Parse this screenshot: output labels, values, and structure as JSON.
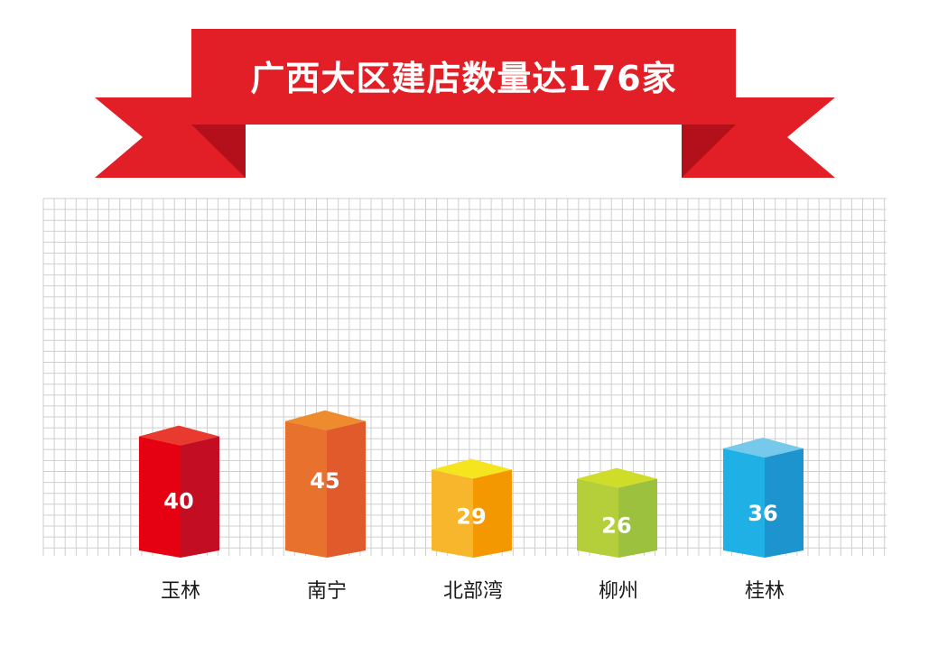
{
  "chart_data": {
    "type": "bar",
    "title": "广西大区建店数量达176家",
    "categories": [
      "玉林",
      "南宁",
      "北部湾",
      "柳州",
      "桂林"
    ],
    "values": [
      40,
      45,
      29,
      26,
      36
    ],
    "colors": [
      {
        "front": "#e50012",
        "side": "#c30d23",
        "top": "#e83a2e"
      },
      {
        "front": "#e8712d",
        "side": "#e05a2b",
        "top": "#ee8b2c"
      },
      {
        "front": "#f8b62d",
        "side": "#f39800",
        "top": "#f5e51e"
      },
      {
        "front": "#b5cf3a",
        "side": "#9cc13e",
        "top": "#cfdc2a"
      },
      {
        "front": "#1fb1e6",
        "side": "#1e94cf",
        "top": "#76c9ea"
      }
    ],
    "grid": true,
    "background": "#ffffff",
    "banner_color": "#e21e26"
  }
}
